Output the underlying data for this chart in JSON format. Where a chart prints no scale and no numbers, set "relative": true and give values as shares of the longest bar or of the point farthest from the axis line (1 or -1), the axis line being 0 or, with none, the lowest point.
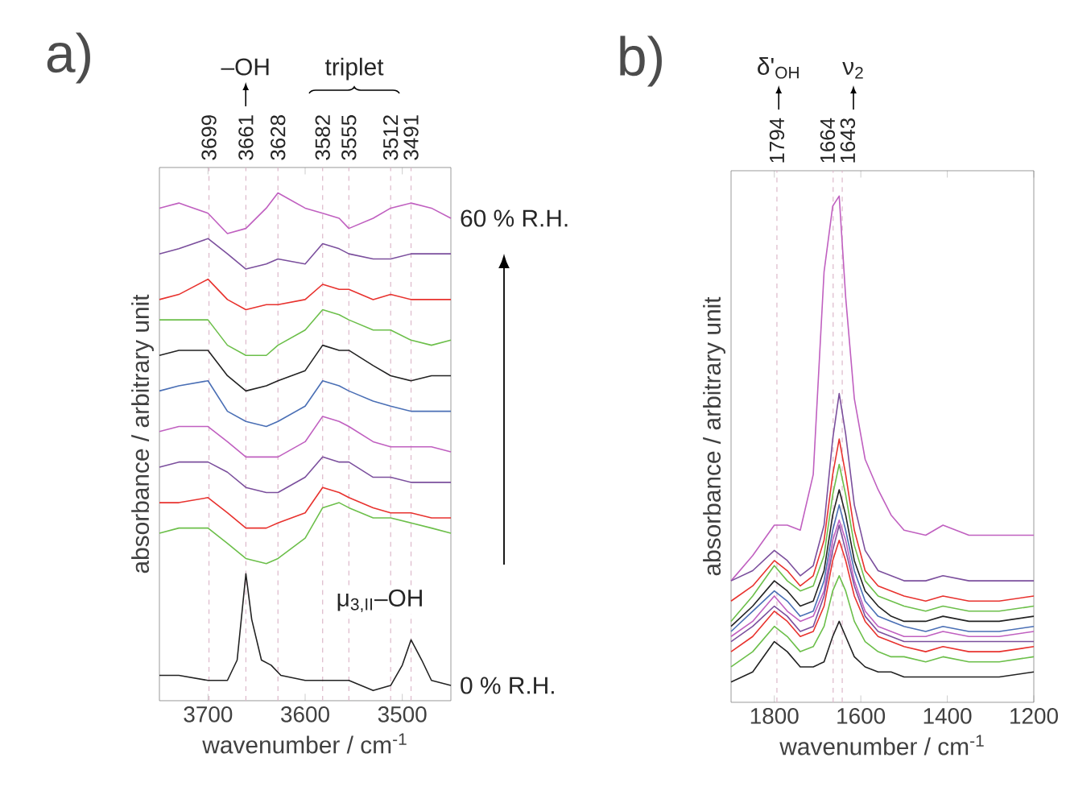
{
  "chart_data": [
    {
      "type": "line",
      "title": "a)",
      "xlabel": "wavenumber / cm$^{-1}$",
      "ylabel": "absorbance / arbitrary unit",
      "relative": true,
      "xlim": [
        3750,
        3450
      ],
      "xticks": [
        3700,
        3600,
        3500
      ],
      "x": [
        3750,
        3730,
        3700,
        3680,
        3661,
        3640,
        3628,
        3600,
        3582,
        3565,
        3555,
        3530,
        3512,
        3491,
        3470,
        3450
      ],
      "series": [
        {
          "color": "#c060c0",
          "values": [
            0.97,
            0.98,
            0.96,
            0.92,
            0.93,
            0.97,
            1.0,
            0.97,
            0.96,
            0.95,
            0.93,
            0.95,
            0.97,
            0.98,
            0.97,
            0.95
          ]
        },
        {
          "color": "#7b4f9d",
          "values": [
            0.88,
            0.89,
            0.91,
            0.88,
            0.85,
            0.86,
            0.87,
            0.86,
            0.9,
            0.89,
            0.88,
            0.87,
            0.87,
            0.88,
            0.88,
            0.88
          ]
        },
        {
          "color": "#e8322e",
          "values": [
            0.79,
            0.8,
            0.83,
            0.79,
            0.77,
            0.78,
            0.78,
            0.79,
            0.82,
            0.81,
            0.81,
            0.79,
            0.8,
            0.79,
            0.79,
            0.79
          ]
        },
        {
          "color": "#6cbf4a",
          "values": [
            0.75,
            0.75,
            0.75,
            0.7,
            0.68,
            0.68,
            0.7,
            0.73,
            0.77,
            0.76,
            0.75,
            0.73,
            0.73,
            0.71,
            0.7,
            0.71
          ]
        },
        {
          "color": "#222222",
          "values": [
            0.68,
            0.69,
            0.69,
            0.64,
            0.61,
            0.62,
            0.63,
            0.65,
            0.7,
            0.69,
            0.69,
            0.66,
            0.64,
            0.63,
            0.64,
            0.64
          ]
        },
        {
          "color": "#4a6fb5",
          "values": [
            0.61,
            0.62,
            0.63,
            0.57,
            0.55,
            0.54,
            0.55,
            0.58,
            0.63,
            0.62,
            0.61,
            0.59,
            0.58,
            0.57,
            0.57,
            0.57
          ]
        },
        {
          "color": "#c060c0",
          "values": [
            0.53,
            0.54,
            0.54,
            0.51,
            0.48,
            0.48,
            0.48,
            0.51,
            0.56,
            0.55,
            0.54,
            0.51,
            0.5,
            0.5,
            0.5,
            0.49
          ]
        },
        {
          "color": "#7b4f9d",
          "values": [
            0.46,
            0.47,
            0.47,
            0.45,
            0.42,
            0.41,
            0.41,
            0.44,
            0.48,
            0.47,
            0.47,
            0.44,
            0.44,
            0.43,
            0.43,
            0.43
          ]
        },
        {
          "color": "#e8322e",
          "values": [
            0.39,
            0.39,
            0.4,
            0.37,
            0.34,
            0.34,
            0.35,
            0.37,
            0.42,
            0.41,
            0.4,
            0.38,
            0.37,
            0.37,
            0.36,
            0.36
          ]
        },
        {
          "color": "#6cbf4a",
          "values": [
            0.33,
            0.34,
            0.34,
            0.31,
            0.28,
            0.27,
            0.28,
            0.32,
            0.38,
            0.39,
            0.38,
            0.36,
            0.36,
            0.35,
            0.34,
            0.33
          ]
        },
        {
          "color": "#222222",
          "x": [
            3750,
            3730,
            3700,
            3680,
            3670,
            3661,
            3655,
            3645,
            3635,
            3625,
            3600,
            3582,
            3555,
            3530,
            3512,
            3500,
            3491,
            3480,
            3470,
            3450
          ],
          "values": [
            0.05,
            0.05,
            0.04,
            0.04,
            0.08,
            0.25,
            0.16,
            0.08,
            0.07,
            0.05,
            0.04,
            0.04,
            0.04,
            0.02,
            0.03,
            0.07,
            0.12,
            0.08,
            0.04,
            0.03
          ]
        }
      ],
      "ref_lines": [
        {
          "axis": "x",
          "value": 3699,
          "label": "3699",
          "color": "#dcb8ca",
          "line_style": "dashed"
        },
        {
          "axis": "x",
          "value": 3661,
          "label": "3661",
          "color": "#dcb8ca",
          "line_style": "dashed"
        },
        {
          "axis": "x",
          "value": 3628,
          "label": "3628",
          "color": "#dcb8ca",
          "line_style": "dashed"
        },
        {
          "axis": "x",
          "value": 3582,
          "label": "3582",
          "color": "#dcb8ca",
          "line_style": "dashed"
        },
        {
          "axis": "x",
          "value": 3555,
          "label": "3555",
          "color": "#dcb8ca",
          "line_style": "dashed"
        },
        {
          "axis": "x",
          "value": 3512,
          "label": "3512",
          "color": "#dcb8ca",
          "line_style": "dashed"
        },
        {
          "axis": "x",
          "value": 3491,
          "label": "3491",
          "color": "#dcb8ca",
          "line_style": "dashed"
        }
      ],
      "annotations": [
        "–OH",
        "triplet",
        "μ$_{3,II}$–OH",
        "60 % R.H.",
        "0 % R.H."
      ]
    },
    {
      "type": "line",
      "title": "b)",
      "xlabel": "wavenumber / cm$^{-1}$",
      "ylabel": "absorbance / arbitrary unit",
      "relative": true,
      "xlim": [
        1900,
        1200
      ],
      "xticks": [
        1800,
        1600,
        1400,
        1200
      ],
      "x": [
        1900,
        1850,
        1800,
        1770,
        1740,
        1710,
        1685,
        1665,
        1650,
        1635,
        1615,
        1590,
        1560,
        1530,
        1500,
        1450,
        1410,
        1350,
        1280,
        1200
      ],
      "series": [
        {
          "color": "#c060c0",
          "values": [
            0.24,
            0.29,
            0.35,
            0.35,
            0.34,
            0.45,
            0.85,
            0.98,
            1.0,
            0.8,
            0.6,
            0.48,
            0.42,
            0.37,
            0.34,
            0.33,
            0.35,
            0.33,
            0.33,
            0.33
          ]
        },
        {
          "color": "#7b4f9d",
          "values": [
            0.24,
            0.26,
            0.3,
            0.28,
            0.25,
            0.27,
            0.35,
            0.52,
            0.61,
            0.53,
            0.39,
            0.3,
            0.26,
            0.25,
            0.24,
            0.24,
            0.25,
            0.24,
            0.24,
            0.24
          ]
        },
        {
          "color": "#e8322e",
          "values": [
            0.2,
            0.23,
            0.28,
            0.26,
            0.23,
            0.25,
            0.32,
            0.45,
            0.52,
            0.45,
            0.34,
            0.26,
            0.23,
            0.22,
            0.21,
            0.2,
            0.21,
            0.2,
            0.2,
            0.21
          ]
        },
        {
          "color": "#6cbf4a",
          "values": [
            0.16,
            0.21,
            0.27,
            0.24,
            0.22,
            0.23,
            0.29,
            0.41,
            0.47,
            0.41,
            0.31,
            0.24,
            0.21,
            0.2,
            0.19,
            0.18,
            0.19,
            0.18,
            0.18,
            0.19
          ]
        },
        {
          "color": "#222222",
          "values": [
            0.15,
            0.19,
            0.24,
            0.22,
            0.19,
            0.2,
            0.26,
            0.37,
            0.42,
            0.37,
            0.28,
            0.22,
            0.19,
            0.17,
            0.16,
            0.16,
            0.17,
            0.16,
            0.16,
            0.17
          ]
        },
        {
          "color": "#4a6fb5",
          "values": [
            0.14,
            0.18,
            0.22,
            0.2,
            0.17,
            0.18,
            0.24,
            0.34,
            0.39,
            0.34,
            0.26,
            0.2,
            0.17,
            0.16,
            0.15,
            0.14,
            0.15,
            0.14,
            0.14,
            0.15
          ]
        },
        {
          "color": "#c060c0",
          "values": [
            0.13,
            0.16,
            0.21,
            0.18,
            0.16,
            0.17,
            0.22,
            0.32,
            0.36,
            0.32,
            0.24,
            0.18,
            0.15,
            0.14,
            0.13,
            0.13,
            0.14,
            0.13,
            0.13,
            0.14
          ]
        },
        {
          "color": "#7b4f9d",
          "values": [
            0.12,
            0.15,
            0.19,
            0.17,
            0.14,
            0.15,
            0.21,
            0.3,
            0.35,
            0.3,
            0.23,
            0.17,
            0.14,
            0.13,
            0.12,
            0.12,
            0.12,
            0.12,
            0.12,
            0.12
          ]
        },
        {
          "color": "#e8322e",
          "values": [
            0.1,
            0.13,
            0.18,
            0.16,
            0.13,
            0.14,
            0.19,
            0.28,
            0.32,
            0.28,
            0.21,
            0.16,
            0.13,
            0.12,
            0.11,
            0.1,
            0.11,
            0.1,
            0.1,
            0.11
          ]
        },
        {
          "color": "#6cbf4a",
          "values": [
            0.07,
            0.1,
            0.15,
            0.13,
            0.1,
            0.11,
            0.15,
            0.22,
            0.25,
            0.22,
            0.16,
            0.12,
            0.1,
            0.09,
            0.09,
            0.08,
            0.09,
            0.08,
            0.08,
            0.09
          ]
        },
        {
          "color": "#222222",
          "values": [
            0.04,
            0.06,
            0.12,
            0.1,
            0.07,
            0.07,
            0.08,
            0.13,
            0.16,
            0.13,
            0.09,
            0.07,
            0.06,
            0.06,
            0.05,
            0.05,
            0.05,
            0.05,
            0.05,
            0.06
          ]
        }
      ],
      "ref_lines": [
        {
          "axis": "x",
          "value": 1794,
          "label": "1794",
          "color": "#dcb8ca",
          "line_style": "dashed"
        },
        {
          "axis": "x",
          "value": 1664,
          "label": "1664",
          "color": "#dcb8ca",
          "line_style": "dashed"
        },
        {
          "axis": "x",
          "value": 1643,
          "label": "1643",
          "color": "#dcb8ca",
          "line_style": "dashed"
        }
      ],
      "annotations": [
        "δ'$_{OH}$",
        "ν$_{2}$"
      ]
    }
  ]
}
